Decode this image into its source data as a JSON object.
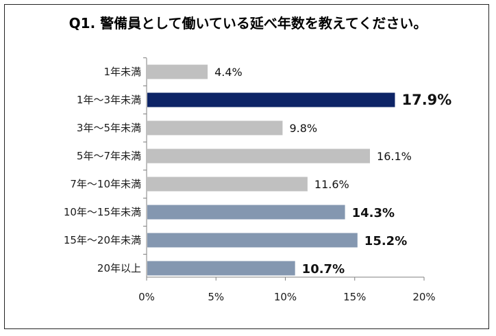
{
  "chart_data": {
    "type": "bar",
    "orientation": "horizontal",
    "title": "Q1. 警備員として働いている延べ年数を教えてください。",
    "categories": [
      "1年未満",
      "1年～3年未満",
      "3年～5年未満",
      "5年～7年未満",
      "7年～10年未満",
      "10年～15年未満",
      "15年～20年未満",
      "20年以上"
    ],
    "values": [
      4.4,
      17.9,
      9.8,
      16.1,
      11.6,
      14.3,
      15.2,
      10.7
    ],
    "value_labels": [
      "4.4%",
      "17.9%",
      "9.8%",
      "16.1%",
      "11.6%",
      "14.3%",
      "15.2%",
      "10.7%"
    ],
    "bar_colors": [
      "#c0c0c0",
      "#0d2466",
      "#c0c0c0",
      "#c0c0c0",
      "#c0c0c0",
      "#8497b0",
      "#8497b0",
      "#8497b0"
    ],
    "bold_labels": [
      false,
      true,
      false,
      false,
      false,
      true,
      true,
      true
    ],
    "xlim": [
      0,
      20
    ],
    "xticks": [
      0,
      5,
      10,
      15,
      20
    ],
    "xtick_labels": [
      "0%",
      "5%",
      "10%",
      "15%",
      "20%"
    ],
    "xlabel": "",
    "ylabel": "",
    "grid": false,
    "legend": "none"
  }
}
